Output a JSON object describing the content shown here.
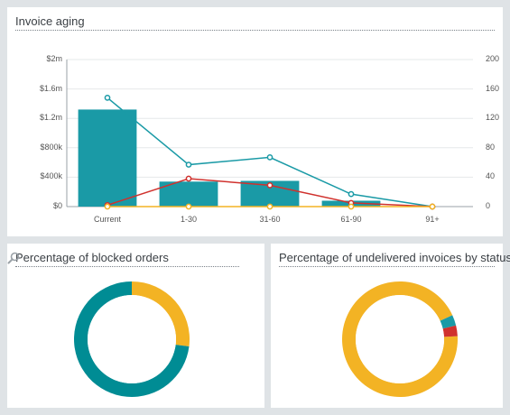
{
  "cards": {
    "aging": {
      "title": "Invoice aging"
    },
    "blocked": {
      "title": "Percentage of blocked orders"
    },
    "undelivered": {
      "title": "Percentage of undelivered invoices by status"
    }
  },
  "colors": {
    "teal": "#1a9aa6",
    "red": "#d0312d",
    "yellow": "#f3b324",
    "darkteal": "#008c94"
  },
  "icons": {
    "search": "search-icon"
  },
  "chart_data": [
    {
      "type": "bar",
      "categories": [
        "Current",
        "1-30",
        "31-60",
        "61-90",
        "91+"
      ],
      "y_ticks_left": [
        "$0",
        "$400k",
        "$800k",
        "$1.2m",
        "$1.6m",
        "$2m"
      ],
      "y_ticks_right": [
        "0",
        "40",
        "80",
        "120",
        "160",
        "200"
      ],
      "ylim": [
        0,
        2000000
      ],
      "ylim_right": [
        0,
        200
      ],
      "series": [
        {
          "values": [
            1320000,
            340000,
            350000,
            80000,
            0
          ],
          "kind": "bar",
          "axis": "left",
          "color": "#1a9aa6"
        },
        {
          "values": [
            148,
            57,
            67,
            17,
            0
          ],
          "kind": "line",
          "axis": "right",
          "color": "#1a9aa6"
        },
        {
          "values": [
            2,
            38,
            29,
            5,
            0
          ],
          "kind": "line",
          "axis": "right",
          "color": "#d0312d"
        },
        {
          "values": [
            0,
            0,
            0,
            0,
            0
          ],
          "kind": "line",
          "axis": "right",
          "color": "#f3b324"
        }
      ],
      "grid": true
    },
    {
      "type": "pie",
      "donut": true,
      "slices": [
        {
          "value": 27,
          "color": "#f3b324"
        },
        {
          "value": 73,
          "color": "#008c94"
        }
      ]
    },
    {
      "type": "pie",
      "donut": true,
      "slices": [
        {
          "value": 94,
          "color": "#f3b324"
        },
        {
          "value": 3,
          "color": "#1a9aa6"
        },
        {
          "value": 3,
          "color": "#d0312d"
        }
      ]
    }
  ]
}
